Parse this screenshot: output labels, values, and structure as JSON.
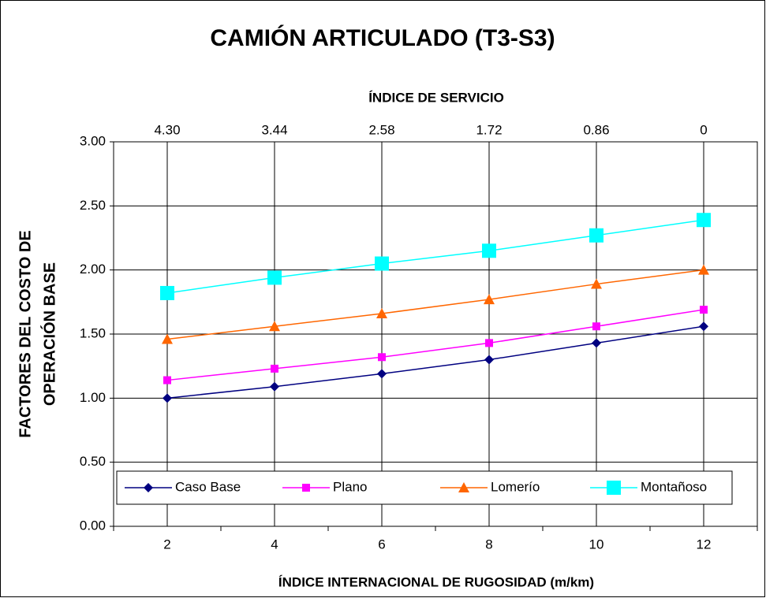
{
  "chart_data": {
    "type": "line",
    "title": "CAMIÓN ARTICULADO (T3-S3)",
    "x2_title": "ÍNDICE DE SERVICIO",
    "x_title": "ÍNDICE INTERNACIONAL DE RUGOSIDAD (m/km)",
    "y_title": [
      "FACTORES DEL COSTO DE",
      "OPERACIÓN BASE"
    ],
    "categories": [
      "2",
      "4",
      "6",
      "8",
      "10",
      "12"
    ],
    "x2_categories": [
      "4.30",
      "3.44",
      "2.58",
      "1.72",
      "0.86",
      "0"
    ],
    "series": [
      {
        "name": "Caso Base",
        "color": "#000080",
        "marker": "diamond",
        "values": [
          1.0,
          1.09,
          1.19,
          1.3,
          1.43,
          1.56
        ]
      },
      {
        "name": "Plano",
        "color": "#ff00ff",
        "marker": "square",
        "values": [
          1.14,
          1.23,
          1.32,
          1.43,
          1.56,
          1.69
        ]
      },
      {
        "name": "Lomerío",
        "color": "#ff6600",
        "marker": "triangle",
        "values": [
          1.46,
          1.56,
          1.66,
          1.77,
          1.89,
          2.0
        ]
      },
      {
        "name": "Montañoso",
        "color": "#00ffff",
        "marker": "bigsquare",
        "values": [
          1.82,
          1.94,
          2.05,
          2.15,
          2.27,
          2.39
        ]
      }
    ],
    "ylim": [
      0,
      3
    ],
    "yticks": [
      {
        "value": 0,
        "label": "0.00"
      },
      {
        "value": 0.5,
        "label": "0.50"
      },
      {
        "value": 1,
        "label": "1.00"
      },
      {
        "value": 1.5,
        "label": "1.50"
      },
      {
        "value": 2,
        "label": "2.00"
      },
      {
        "value": 2.5,
        "label": "2.50"
      },
      {
        "value": 3,
        "label": "3.00"
      }
    ],
    "grid": true,
    "legend": "bottom"
  }
}
